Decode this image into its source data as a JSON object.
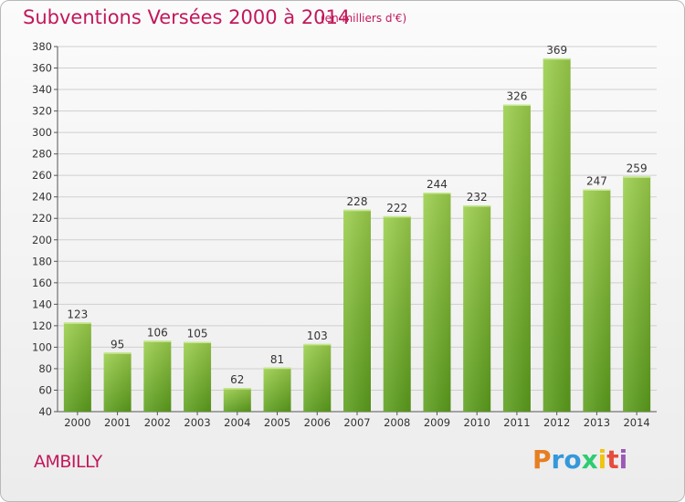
{
  "header": {
    "title": "Subventions Versées 2000 à 2014",
    "subtitle": "(en milliers d'€)"
  },
  "commune": "AMBILLY",
  "logo": {
    "letters": [
      "P",
      "r",
      "o",
      "x",
      "i",
      "t",
      "i"
    ],
    "colors": [
      "#e67e22",
      "#3498db",
      "#3498db",
      "#2ecc71",
      "#f1c40f",
      "#e74c3c",
      "#9b59b6"
    ]
  },
  "colors": {
    "bar_top": "#9ccf4c",
    "bar_bottom": "#5c9e1c",
    "grid": "#cfcfcf",
    "title": "#c2185b"
  },
  "chart_data": {
    "type": "bar",
    "categories": [
      "2000",
      "2001",
      "2002",
      "2003",
      "2004",
      "2005",
      "2006",
      "2007",
      "2008",
      "2009",
      "2010",
      "2011",
      "2012",
      "2013",
      "2014"
    ],
    "values": [
      123,
      95,
      106,
      105,
      62,
      81,
      103,
      228,
      222,
      244,
      232,
      326,
      369,
      247,
      259
    ],
    "title": "Subventions Versées 2000 à 2014",
    "ylim": [
      40,
      380
    ],
    "yticks": [
      40,
      60,
      80,
      100,
      120,
      140,
      160,
      180,
      200,
      220,
      240,
      260,
      280,
      300,
      320,
      340,
      360,
      380
    ],
    "grid": true,
    "data_labels": true
  }
}
